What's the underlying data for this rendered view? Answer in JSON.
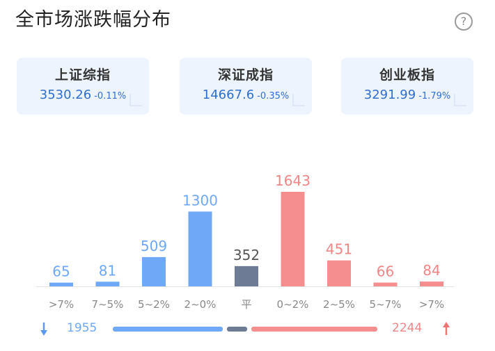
{
  "title": "全市场涨跌幅分布",
  "help_glyph": "?",
  "indices": [
    {
      "name": "上证综指",
      "value": "3530.26",
      "change": "-0.11%"
    },
    {
      "name": "深证成指",
      "value": "14667.6",
      "change": "-0.35%"
    },
    {
      "name": "创业板指",
      "value": "3291.99",
      "change": "-1.79%"
    }
  ],
  "chart_data": {
    "type": "bar",
    "categories": [
      ">7%",
      "7~5%",
      "5~2%",
      "2~0%",
      "平",
      "0~2%",
      "2~5%",
      "5~7%",
      ">7%"
    ],
    "values": [
      65,
      81,
      509,
      1300,
      352,
      1643,
      451,
      66,
      84
    ],
    "colors": [
      "#6ea8f6",
      "#6ea8f6",
      "#6ea8f6",
      "#6ea8f6",
      "#6e7b95",
      "#f58f8f",
      "#f58f8f",
      "#f58f8f",
      "#f58f8f"
    ],
    "label_colors": [
      "#6ea8f6",
      "#6ea8f6",
      "#6ea8f6",
      "#6ea8f6",
      "#555555",
      "#f08686",
      "#f08686",
      "#f08686",
      "#f08686"
    ],
    "ylim": [
      0,
      1643
    ]
  },
  "summary": {
    "down_count": "1955",
    "up_count": "2244",
    "flat_count": 352,
    "down_color": "#6ea8f6",
    "flat_color": "#6e7b95",
    "up_color": "#f58f8f"
  }
}
